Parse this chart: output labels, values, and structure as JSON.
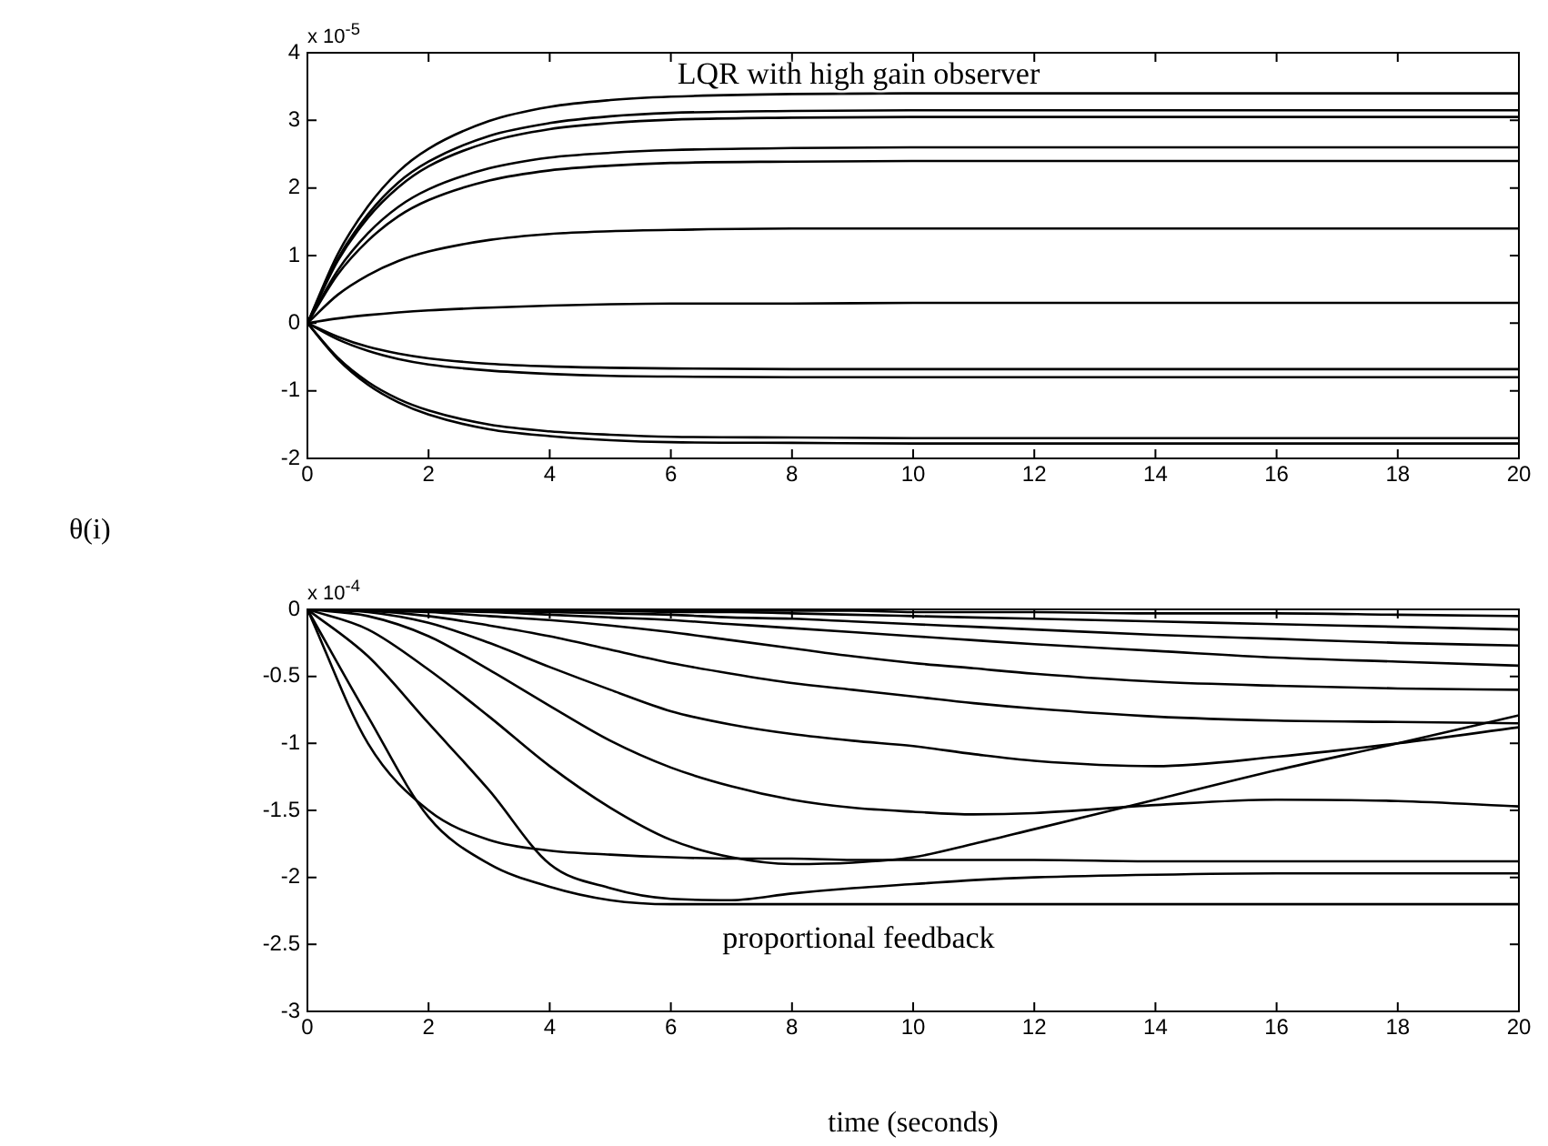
{
  "chart_data": [
    {
      "type": "line",
      "ylabel": "θ(i)",
      "annotations": [
        "x 10$^{-5}$",
        "LQR with high gain observer"
      ],
      "xlim": [
        0,
        20
      ],
      "xticks": [
        0,
        2,
        4,
        6,
        8,
        10,
        12,
        14,
        16,
        18,
        20
      ],
      "ylim": [
        -2,
        4
      ],
      "yticks": [
        -2,
        -1,
        0,
        1,
        2,
        3,
        4
      ],
      "grid": false,
      "legend": false,
      "marker": "none",
      "line_style": "solid",
      "x": [
        0,
        0.5,
        1,
        1.5,
        2,
        3,
        4,
        5,
        6,
        8,
        10,
        20
      ],
      "series": [
        {
          "color": "#000000",
          "values": [
            0,
            1.02,
            1.73,
            2.24,
            2.58,
            2.99,
            3.2,
            3.3,
            3.35,
            3.39,
            3.4,
            3.4
          ]
        },
        {
          "color": "#000000",
          "values": [
            0,
            0.95,
            1.61,
            2.08,
            2.39,
            2.77,
            2.96,
            3.06,
            3.11,
            3.14,
            3.15,
            3.15
          ]
        },
        {
          "color": "#000000",
          "values": [
            0,
            0.92,
            1.56,
            2.01,
            2.32,
            2.68,
            2.87,
            2.96,
            3.01,
            3.04,
            3.05,
            3.05
          ]
        },
        {
          "color": "#000000",
          "values": [
            0,
            0.78,
            1.33,
            1.72,
            1.98,
            2.29,
            2.45,
            2.52,
            2.56,
            2.59,
            2.6,
            2.6
          ]
        },
        {
          "color": "#000000",
          "values": [
            0,
            0.72,
            1.22,
            1.58,
            1.82,
            2.11,
            2.26,
            2.33,
            2.37,
            2.39,
            2.4,
            2.4
          ]
        },
        {
          "color": "#000000",
          "values": [
            0,
            0.42,
            0.71,
            0.92,
            1.06,
            1.23,
            1.32,
            1.36,
            1.38,
            1.4,
            1.4,
            1.4
          ]
        },
        {
          "color": "#000000",
          "values": [
            0,
            0.07,
            0.12,
            0.16,
            0.19,
            0.23,
            0.26,
            0.28,
            0.29,
            0.29,
            0.3,
            0.3
          ]
        },
        {
          "color": "#000000",
          "values": [
            0,
            -0.2,
            -0.35,
            -0.45,
            -0.52,
            -0.6,
            -0.64,
            -0.66,
            -0.67,
            -0.68,
            -0.68,
            -0.68
          ]
        },
        {
          "color": "#000000",
          "values": [
            0,
            -0.24,
            -0.41,
            -0.53,
            -0.61,
            -0.7,
            -0.75,
            -0.78,
            -0.79,
            -0.8,
            -0.8,
            -0.8
          ]
        },
        {
          "color": "#000000",
          "values": [
            0,
            -0.51,
            -0.87,
            -1.12,
            -1.29,
            -1.5,
            -1.6,
            -1.65,
            -1.68,
            -1.69,
            -1.7,
            -1.7
          ]
        },
        {
          "color": "#000000",
          "values": [
            0,
            -0.53,
            -0.91,
            -1.17,
            -1.35,
            -1.57,
            -1.67,
            -1.73,
            -1.76,
            -1.77,
            -1.78,
            -1.78
          ]
        }
      ]
    },
    {
      "type": "line",
      "xlabel": "time (seconds)",
      "annotations": [
        "x 10$^{-4}$",
        "proportional feedback"
      ],
      "xlim": [
        0,
        20
      ],
      "xticks": [
        0,
        2,
        4,
        6,
        8,
        10,
        12,
        14,
        16,
        18,
        20
      ],
      "ylim": [
        -3,
        0
      ],
      "yticks": [
        -3,
        -2.5,
        -2,
        -1.5,
        -1,
        -0.5,
        0
      ],
      "grid": false,
      "legend": false,
      "marker": "none",
      "line_style": "solid",
      "x": [
        0,
        1,
        2,
        3,
        4,
        5,
        6,
        7,
        8,
        9,
        10,
        11,
        12,
        14,
        16,
        18,
        20
      ],
      "series": [
        {
          "color": "#000000",
          "values": [
            0,
            0,
            0,
            0,
            0,
            0,
            -0.01,
            -0.01,
            -0.01,
            -0.01,
            -0.02,
            -0.02,
            -0.02,
            -0.03,
            -0.03,
            -0.04,
            -0.05
          ]
        },
        {
          "color": "#000000",
          "values": [
            0,
            0,
            0,
            0,
            -0.01,
            -0.01,
            -0.02,
            -0.02,
            -0.03,
            -0.04,
            -0.05,
            -0.06,
            -0.07,
            -0.09,
            -0.11,
            -0.13,
            -0.15
          ]
        },
        {
          "color": "#000000",
          "values": [
            0,
            0,
            -0.01,
            -0.01,
            -0.02,
            -0.03,
            -0.04,
            -0.06,
            -0.07,
            -0.09,
            -0.11,
            -0.13,
            -0.15,
            -0.19,
            -0.22,
            -0.25,
            -0.27
          ]
        },
        {
          "color": "#000000",
          "values": [
            0,
            0,
            -0.01,
            -0.02,
            -0.04,
            -0.06,
            -0.08,
            -0.11,
            -0.14,
            -0.17,
            -0.2,
            -0.23,
            -0.26,
            -0.31,
            -0.36,
            -0.39,
            -0.42
          ]
        },
        {
          "color": "#000000",
          "values": [
            0,
            -0.01,
            -0.02,
            -0.05,
            -0.08,
            -0.12,
            -0.17,
            -0.23,
            -0.29,
            -0.35,
            -0.4,
            -0.44,
            -0.48,
            -0.54,
            -0.57,
            -0.59,
            -0.6
          ]
        },
        {
          "color": "#000000",
          "values": [
            0,
            -0.01,
            -0.05,
            -0.12,
            -0.2,
            -0.3,
            -0.4,
            -0.48,
            -0.55,
            -0.6,
            -0.65,
            -0.7,
            -0.74,
            -0.8,
            -0.83,
            -0.84,
            -0.85
          ]
        },
        {
          "color": "#000000",
          "values": [
            0,
            -0.02,
            -0.1,
            -0.25,
            -0.43,
            -0.6,
            -0.76,
            -0.86,
            -0.93,
            -0.98,
            -1.02,
            -1.08,
            -1.13,
            -1.17,
            -1.1,
            -1,
            -0.88
          ]
        },
        {
          "color": "#000000",
          "values": [
            0,
            -0.05,
            -0.2,
            -0.45,
            -0.72,
            -0.98,
            -1.18,
            -1.32,
            -1.42,
            -1.48,
            -1.51,
            -1.53,
            -1.52,
            -1.46,
            -1.42,
            -1.43,
            -1.47
          ]
        },
        {
          "color": "#000000",
          "values": [
            0,
            -0.15,
            -0.45,
            -0.8,
            -1.17,
            -1.48,
            -1.72,
            -1.85,
            -1.9,
            -1.89,
            -1.85,
            -1.75,
            -1.64,
            -1.42,
            -1.2,
            -1,
            -0.79
          ]
        },
        {
          "color": "#000000",
          "values": [
            0,
            -0.35,
            -0.85,
            -1.35,
            -1.9,
            -2.08,
            -2.16,
            -2.17,
            -2.12,
            -2.08,
            -2.05,
            -2.02,
            -2,
            -1.98,
            -1.97,
            -1.97,
            -1.97
          ]
        },
        {
          "color": "#000000",
          "values": [
            0,
            -0.8,
            -1.55,
            -1.9,
            -2.07,
            -2.17,
            -2.2,
            -2.2,
            -2.2,
            -2.2,
            -2.2,
            -2.2,
            -2.2,
            -2.2,
            -2.2,
            -2.2,
            -2.2
          ]
        },
        {
          "color": "#000000",
          "values": [
            0,
            -1,
            -1.5,
            -1.72,
            -1.8,
            -1.83,
            -1.85,
            -1.86,
            -1.86,
            -1.87,
            -1.87,
            -1.87,
            -1.87,
            -1.88,
            -1.88,
            -1.88,
            -1.88
          ]
        }
      ]
    }
  ]
}
